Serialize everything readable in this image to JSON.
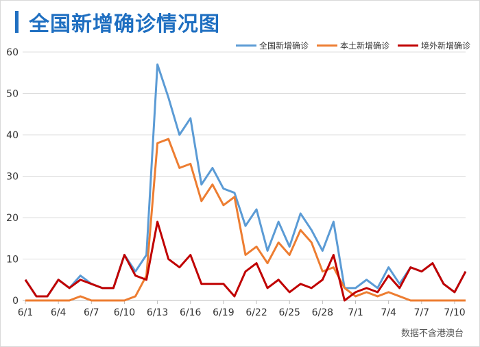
{
  "chart_data": {
    "type": "line",
    "title": "全国新增确诊情况图",
    "note": "数据不含港澳台",
    "ylim": [
      0,
      60
    ],
    "yticks": [
      0,
      10,
      20,
      30,
      40,
      50,
      60
    ],
    "grid": true,
    "legend_position": "top-right",
    "x": [
      "6/1",
      "6/2",
      "6/3",
      "6/4",
      "6/5",
      "6/6",
      "6/7",
      "6/8",
      "6/9",
      "6/10",
      "6/11",
      "6/12",
      "6/13",
      "6/14",
      "6/15",
      "6/16",
      "6/17",
      "6/18",
      "6/19",
      "6/20",
      "6/21",
      "6/22",
      "6/23",
      "6/24",
      "6/25",
      "6/26",
      "6/27",
      "6/28",
      "6/29",
      "6/30",
      "7/1",
      "7/2",
      "7/3",
      "7/4",
      "7/5",
      "7/6",
      "7/7",
      "7/8",
      "7/9",
      "7/10",
      "7/11"
    ],
    "xtick_labels": [
      "6/1",
      "6/4",
      "6/7",
      "6/10",
      "6/13",
      "6/16",
      "6/19",
      "6/22",
      "6/25",
      "6/28",
      "7/1",
      "7/4",
      "7/7",
      "7/10"
    ],
    "series": [
      {
        "name": "全国新增确诊",
        "color": "#5b9bd5",
        "values": [
          5,
          1,
          1,
          5,
          3,
          6,
          4,
          3,
          3,
          11,
          7,
          11,
          57,
          49,
          40,
          44,
          28,
          32,
          27,
          26,
          18,
          22,
          12,
          19,
          13,
          21,
          17,
          12,
          19,
          3,
          3,
          5,
          3,
          8,
          4,
          8,
          7,
          9,
          4,
          2,
          7
        ]
      },
      {
        "name": "本土新增确诊",
        "color": "#ed7d31",
        "values": [
          0,
          0,
          0,
          0,
          0,
          1,
          0,
          0,
          0,
          0,
          1,
          6,
          38,
          39,
          32,
          33,
          24,
          28,
          23,
          25,
          11,
          13,
          9,
          14,
          11,
          17,
          14,
          7,
          8,
          3,
          1,
          2,
          1,
          2,
          1,
          0,
          0,
          0,
          0,
          0,
          0
        ]
      },
      {
        "name": "境外新增确诊",
        "color": "#c00000",
        "values": [
          5,
          1,
          1,
          5,
          3,
          5,
          4,
          3,
          3,
          11,
          6,
          5,
          19,
          10,
          8,
          11,
          4,
          4,
          4,
          1,
          7,
          9,
          3,
          5,
          2,
          4,
          3,
          5,
          11,
          0,
          2,
          3,
          2,
          6,
          3,
          8,
          7,
          9,
          4,
          2,
          7
        ]
      }
    ]
  }
}
